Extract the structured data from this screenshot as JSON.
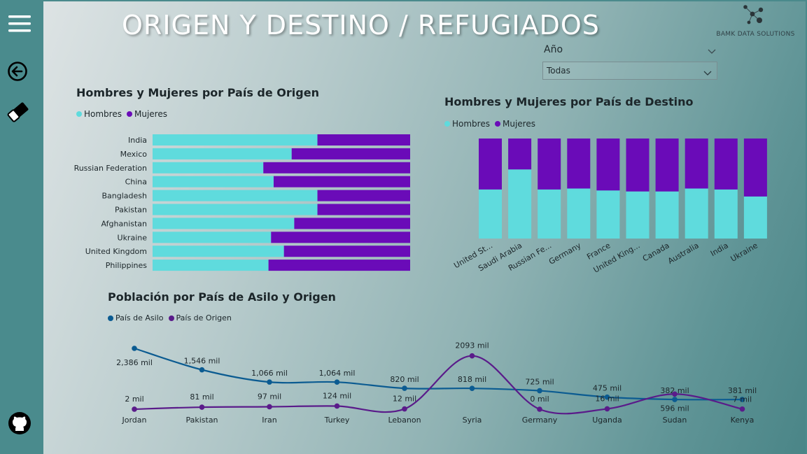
{
  "header": {
    "title": "ORIGEN Y DESTINO / REFUGIADOS",
    "logo_text": "BAMK DATA SOLUTIONS"
  },
  "sidebar": {
    "menu_icon": "hamburger-icon",
    "back_icon": "back-arrow-icon",
    "eraser_icon": "eraser-icon",
    "github_icon": "github-icon"
  },
  "slicer": {
    "label": "Año",
    "value": "Todas"
  },
  "colors": {
    "hombres": "#5fdbdd",
    "mujeres": "#6a0bb8",
    "asilo": "#0b5b91",
    "origen": "#5a1b8a"
  },
  "chart_data": [
    {
      "type": "bar",
      "orientation": "horizontal-100%-stacked",
      "title": "Hombres y Mujeres por País de Origen",
      "categories": [
        "India",
        "Mexico",
        "Russian Federation",
        "China",
        "Bangladesh",
        "Pakistan",
        "Afghanistan",
        "Ukraine",
        "United Kingdom",
        "Philippines"
      ],
      "series": [
        {
          "name": "Hombres",
          "values": [
            0.64,
            0.54,
            0.43,
            0.47,
            0.64,
            0.64,
            0.55,
            0.46,
            0.51,
            0.45
          ]
        },
        {
          "name": "Mujeres",
          "values": [
            0.36,
            0.46,
            0.57,
            0.53,
            0.36,
            0.36,
            0.45,
            0.54,
            0.49,
            0.55
          ]
        }
      ]
    },
    {
      "type": "bar",
      "orientation": "vertical-100%-stacked",
      "title": "Hombres y Mujeres por País de Destino",
      "categories": [
        "United St...",
        "Saudi Arabia",
        "Russian Fe...",
        "Germany",
        "France",
        "United King...",
        "Canada",
        "Australia",
        "India",
        "Ukraine"
      ],
      "series": [
        {
          "name": "Hombres",
          "values": [
            0.49,
            0.69,
            0.49,
            0.5,
            0.48,
            0.47,
            0.47,
            0.5,
            0.49,
            0.42
          ]
        },
        {
          "name": "Mujeres",
          "values": [
            0.51,
            0.31,
            0.51,
            0.5,
            0.52,
            0.53,
            0.53,
            0.5,
            0.51,
            0.58
          ]
        }
      ]
    },
    {
      "type": "line",
      "title": "Población por País de Asilo y Origen",
      "categories": [
        "Jordan",
        "Pakistan",
        "Iran",
        "Turkey",
        "Lebanon",
        "Syria",
        "Germany",
        "Uganda",
        "Sudan",
        "Kenya"
      ],
      "series": [
        {
          "name": "País de Asilo",
          "values": [
            2386,
            1546,
            1066,
            1064,
            820,
            818,
            725,
            475,
            382,
            381
          ],
          "labels": [
            "2,386 mil",
            "1,546 mil",
            "1,066 mil",
            "1,064 mil",
            "820 mil",
            "818 mil",
            "725 mil",
            "475 mil",
            "382 mil",
            "381 mil"
          ]
        },
        {
          "name": "País de Origen",
          "values": [
            2,
            81,
            97,
            124,
            12,
            2093,
            0,
            16,
            596,
            7
          ],
          "labels": [
            "2 mil",
            "81 mil",
            "97 mil",
            "124 mil",
            "12 mil",
            "2093 mil",
            "0 mil",
            "16 mil",
            "596 mil",
            "7 mil"
          ]
        }
      ]
    }
  ]
}
